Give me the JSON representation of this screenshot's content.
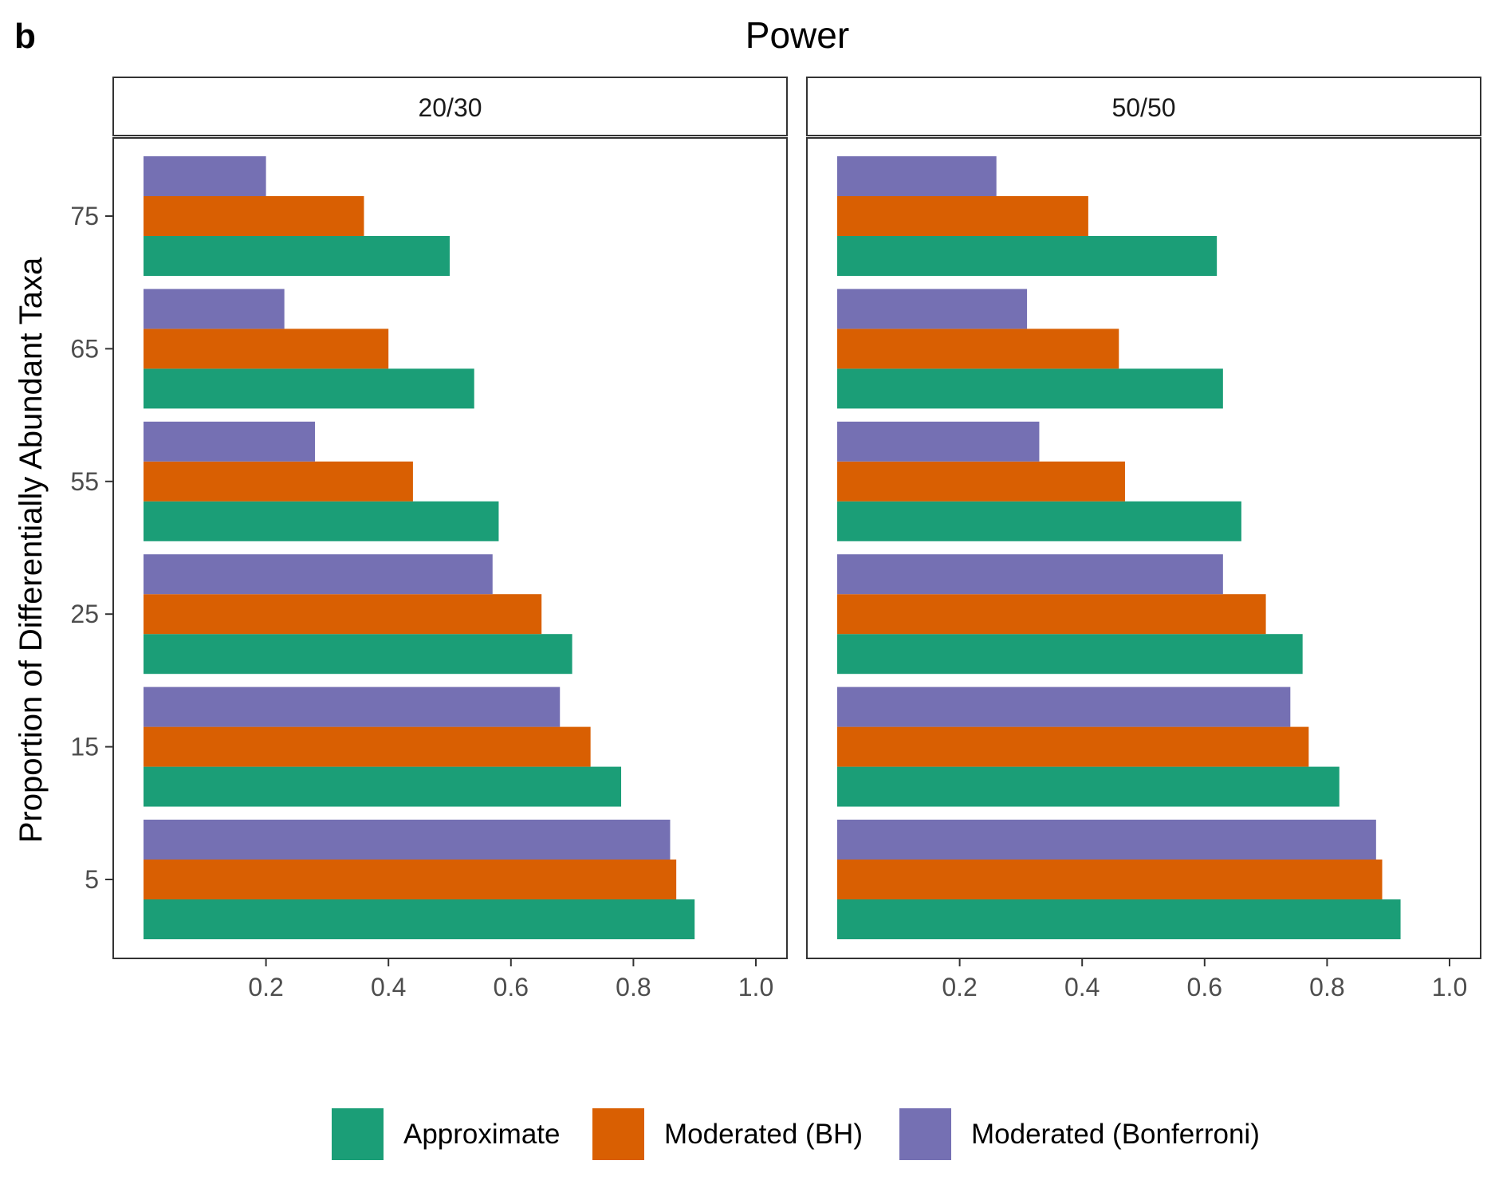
{
  "panel_letter": "b",
  "title": "Power",
  "ylabel": "Proportion of Differentially Abundant Taxa",
  "colors": {
    "Approximate": "#1b9e77",
    "Moderated (BH)": "#d95f02",
    "Moderated (Bonferroni)": "#7570b3"
  },
  "legend": {
    "position": "bottom",
    "items": [
      "Approximate",
      "Moderated (BH)",
      "Moderated (Bonferroni)"
    ]
  },
  "chart_data": {
    "type": "bar",
    "orientation": "horizontal",
    "title": "Power",
    "ylabel": "Proportion of Differentially Abundant Taxa",
    "xlabel": "",
    "categories": [
      "5",
      "15",
      "25",
      "55",
      "65",
      "75"
    ],
    "xlim": [
      0,
      1.05
    ],
    "xticks": [
      "0.2",
      "0.4",
      "0.6",
      "0.8",
      "1.0"
    ],
    "grid": false,
    "legend_position": "bottom",
    "facets": [
      {
        "label": "20/30",
        "series": [
          {
            "name": "Approximate",
            "values": [
              0.9,
              0.78,
              0.7,
              0.58,
              0.54,
              0.5
            ]
          },
          {
            "name": "Moderated (BH)",
            "values": [
              0.87,
              0.73,
              0.65,
              0.44,
              0.4,
              0.36
            ]
          },
          {
            "name": "Moderated (Bonferroni)",
            "values": [
              0.86,
              0.68,
              0.57,
              0.28,
              0.23,
              0.2
            ]
          }
        ]
      },
      {
        "label": "50/50",
        "series": [
          {
            "name": "Approximate",
            "values": [
              0.92,
              0.82,
              0.76,
              0.66,
              0.63,
              0.62
            ]
          },
          {
            "name": "Moderated (BH)",
            "values": [
              0.89,
              0.77,
              0.7,
              0.47,
              0.46,
              0.41
            ]
          },
          {
            "name": "Moderated (Bonferroni)",
            "values": [
              0.88,
              0.74,
              0.63,
              0.33,
              0.31,
              0.26
            ]
          }
        ]
      }
    ]
  }
}
